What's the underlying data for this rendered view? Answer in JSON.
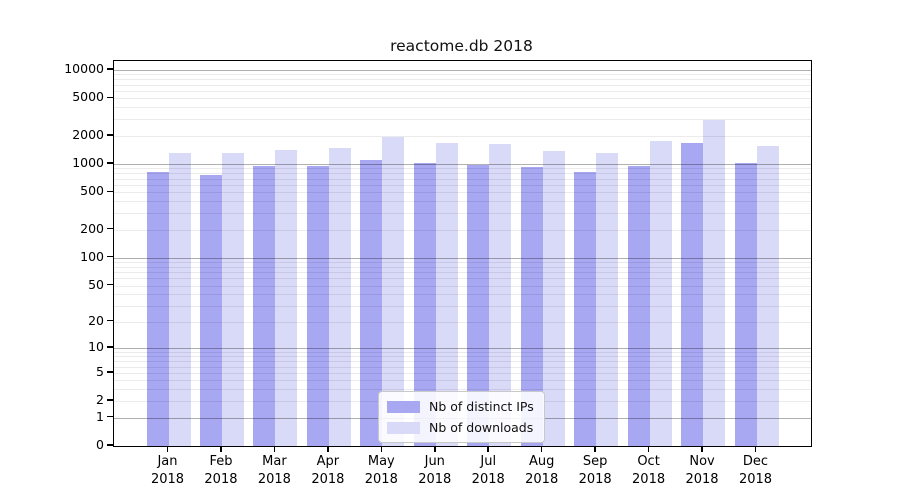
{
  "chart_data": {
    "type": "bar",
    "title": "reactome.db 2018",
    "scale": "symlog-log1p",
    "categories": [
      "Jan",
      "Feb",
      "Mar",
      "Apr",
      "May",
      "Jun",
      "Jul",
      "Aug",
      "Sep",
      "Oct",
      "Nov",
      "Dec"
    ],
    "year_label": "2018",
    "series": [
      {
        "name": "Nb of distinct IPs",
        "color": "#a7a7f2",
        "values": [
          830,
          770,
          960,
          960,
          1110,
          1030,
          980,
          925,
          825,
          955,
          1665,
          1035
        ]
      },
      {
        "name": "Nb of downloads",
        "color": "#d9d9f8",
        "values": [
          1300,
          1300,
          1420,
          1490,
          1960,
          1670,
          1630,
          1370,
          1325,
          1765,
          2970,
          1570
        ]
      }
    ],
    "y_ticks": [
      0,
      1,
      2,
      5,
      10,
      20,
      50,
      100,
      200,
      500,
      1000,
      2000,
      5000,
      10000
    ],
    "ylim": [
      0,
      12500
    ],
    "grid": {
      "major_decades": [
        1,
        10,
        100,
        1000,
        10000
      ],
      "minor": true
    },
    "legend": {
      "position": "lower center"
    }
  }
}
